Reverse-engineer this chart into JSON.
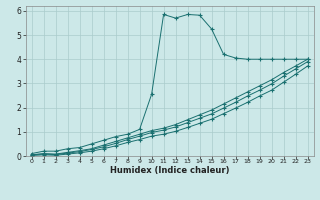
{
  "xlabel": "Humidex (Indice chaleur)",
  "bg_color": "#cce8e8",
  "grid_color": "#aacccc",
  "line_color": "#1a7070",
  "xlim": [
    -0.5,
    23.5
  ],
  "ylim": [
    0,
    6.2
  ],
  "xticks": [
    0,
    1,
    2,
    3,
    4,
    5,
    6,
    7,
    8,
    9,
    10,
    11,
    12,
    13,
    14,
    15,
    16,
    17,
    18,
    19,
    20,
    21,
    22,
    23
  ],
  "yticks": [
    0,
    1,
    2,
    3,
    4,
    5,
    6
  ],
  "line1_x": [
    0,
    1,
    2,
    3,
    4,
    5,
    6,
    7,
    8,
    9,
    10,
    11,
    12,
    13,
    14,
    15,
    16,
    17,
    18,
    19,
    20,
    21,
    22,
    23
  ],
  "line1_y": [
    0.1,
    0.2,
    0.2,
    0.3,
    0.35,
    0.5,
    0.65,
    0.8,
    0.9,
    1.1,
    2.55,
    5.85,
    5.7,
    5.85,
    5.82,
    5.25,
    4.2,
    4.05,
    4.0,
    4.0,
    4.0,
    4.0,
    4.0,
    4.0
  ],
  "line2_x": [
    0,
    1,
    2,
    3,
    4,
    5,
    6,
    7,
    8,
    9,
    10,
    11,
    12,
    13,
    14,
    15,
    16,
    17,
    18,
    19,
    20,
    21,
    22,
    23
  ],
  "line2_y": [
    0.05,
    0.1,
    0.08,
    0.15,
    0.22,
    0.3,
    0.45,
    0.6,
    0.75,
    0.9,
    1.05,
    1.15,
    1.3,
    1.5,
    1.7,
    1.9,
    2.15,
    2.4,
    2.65,
    2.9,
    3.15,
    3.45,
    3.72,
    4.0
  ],
  "line3_x": [
    0,
    1,
    2,
    3,
    4,
    5,
    6,
    7,
    8,
    9,
    10,
    11,
    12,
    13,
    14,
    15,
    16,
    17,
    18,
    19,
    20,
    21,
    22,
    23
  ],
  "line3_y": [
    0.05,
    0.08,
    0.06,
    0.12,
    0.18,
    0.27,
    0.38,
    0.52,
    0.68,
    0.82,
    0.97,
    1.07,
    1.2,
    1.38,
    1.56,
    1.74,
    1.98,
    2.22,
    2.48,
    2.72,
    2.98,
    3.3,
    3.6,
    3.9
  ],
  "line4_x": [
    0,
    1,
    2,
    3,
    4,
    5,
    6,
    7,
    8,
    9,
    10,
    11,
    12,
    13,
    14,
    15,
    16,
    17,
    18,
    19,
    20,
    21,
    22,
    23
  ],
  "line4_y": [
    0.02,
    0.05,
    0.03,
    0.08,
    0.13,
    0.2,
    0.3,
    0.42,
    0.56,
    0.68,
    0.82,
    0.9,
    1.02,
    1.18,
    1.35,
    1.52,
    1.75,
    1.98,
    2.22,
    2.48,
    2.72,
    3.05,
    3.38,
    3.72
  ]
}
